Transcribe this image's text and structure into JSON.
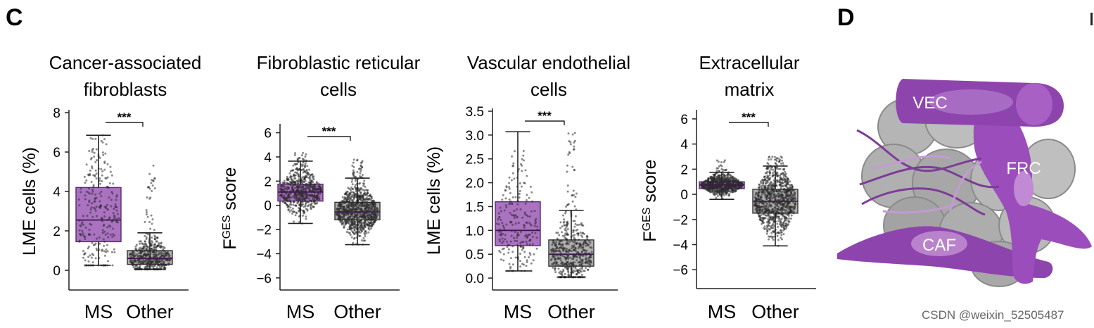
{
  "labels": {
    "panel_c": "C",
    "panel_d": "D"
  },
  "illustration": {
    "vec": "VEC",
    "frc": "FRC",
    "caf": "CAF"
  },
  "watermark": "CSDN @weixin_52505487",
  "chart_data": [
    {
      "type": "box",
      "title": [
        "Cancer-associated",
        "fibroblasts"
      ],
      "ylabel": "LME cells (%)",
      "ylabel_super": "",
      "categories": [
        "MS",
        "Other"
      ],
      "ylim": [
        -1,
        8
      ],
      "yticks": [
        0,
        2,
        4,
        6,
        8
      ],
      "significance": "***",
      "boxes": [
        {
          "name": "MS",
          "q1": 1.45,
          "median": 2.55,
          "q3": 4.2,
          "whisker_low": 0.25,
          "whisker_high": 6.85,
          "spread_max": 6.85,
          "n_points": 260
        },
        {
          "name": "Other",
          "q1": 0.3,
          "median": 0.6,
          "q3": 1.0,
          "whisker_low": 0.05,
          "whisker_high": 1.9,
          "spread_max": 5.5,
          "n_points": 520
        }
      ]
    },
    {
      "type": "box",
      "title": [
        "Fibroblastic reticular",
        "cells"
      ],
      "ylabel": "F",
      "ylabel_super": "GES",
      "ylabel_suffix": " score",
      "categories": [
        "MS",
        "Other"
      ],
      "ylim": [
        -7,
        6.5
      ],
      "yticks": [
        -6,
        -4,
        -2,
        0,
        2,
        4,
        6
      ],
      "significance": "***",
      "boxes": [
        {
          "name": "MS",
          "q1": 0.35,
          "median": 1.1,
          "q3": 1.75,
          "whisker_low": -1.5,
          "whisker_high": 3.65,
          "spread_max": 4.5,
          "n_points": 600
        },
        {
          "name": "Other",
          "q1": -1.2,
          "median": -0.55,
          "q3": 0.25,
          "whisker_low": -3.25,
          "whisker_high": 2.25,
          "spread_max": 3.8,
          "n_points": 900
        }
      ]
    },
    {
      "type": "box",
      "title": [
        "Vascular endothelial",
        "cells"
      ],
      "ylabel": "LME cells (%)",
      "ylabel_super": "",
      "categories": [
        "MS",
        "Other"
      ],
      "ylim": [
        -0.25,
        3.5
      ],
      "yticks": [
        0.0,
        0.5,
        1.0,
        1.5,
        2.0,
        2.5,
        3.0,
        3.5
      ],
      "significance": "***",
      "boxes": [
        {
          "name": "MS",
          "q1": 0.68,
          "median": 1.0,
          "q3": 1.6,
          "whisker_low": 0.15,
          "whisker_high": 3.07,
          "spread_max": 2.95,
          "n_points": 220
        },
        {
          "name": "Other",
          "q1": 0.25,
          "median": 0.5,
          "q3": 0.8,
          "whisker_low": 0.02,
          "whisker_high": 1.42,
          "spread_max": 3.05,
          "n_points": 520
        }
      ]
    },
    {
      "type": "box",
      "title": [
        "Extracellular",
        "matrix"
      ],
      "ylabel": "F",
      "ylabel_super": "GES",
      "ylabel_suffix": " score",
      "categories": [
        "MS",
        "Other"
      ],
      "ylim": [
        -7.5,
        6.5
      ],
      "yticks": [
        -6,
        -4,
        -2,
        0,
        2,
        4,
        6
      ],
      "significance": "***",
      "boxes": [
        {
          "name": "MS",
          "q1": 0.45,
          "median": 0.75,
          "q3": 1.0,
          "whisker_low": -0.4,
          "whisker_high": 1.75,
          "spread_max": 2.7,
          "n_points": 700
        },
        {
          "name": "Other",
          "q1": -1.5,
          "median": -0.55,
          "q3": 0.4,
          "whisker_low": -4.1,
          "whisker_high": 2.25,
          "spread_max": 3.0,
          "n_points": 900
        }
      ]
    }
  ]
}
